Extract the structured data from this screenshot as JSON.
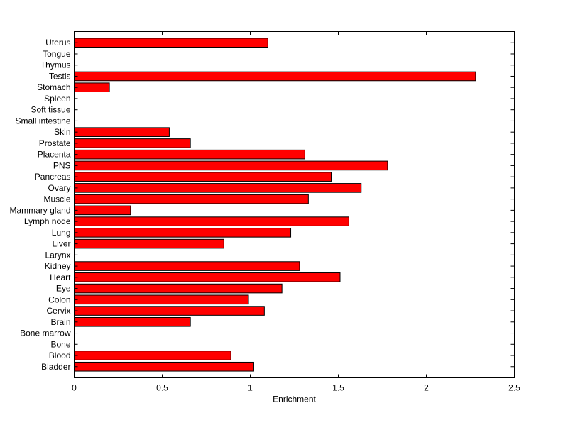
{
  "chart_data": {
    "type": "bar",
    "orientation": "horizontal",
    "title": "",
    "xlabel": "Enrichment",
    "ylabel": "",
    "xlim": [
      0,
      2.5
    ],
    "xticks": [
      "0",
      "0.5",
      "1",
      "1.5",
      "2",
      "2.5"
    ],
    "grid": false,
    "bar_color": "#ff0000",
    "bar_edge_color": "#000000",
    "categories": [
      "Bladder",
      "Blood",
      "Bone",
      "Bone marrow",
      "Brain",
      "Cervix",
      "Colon",
      "Eye",
      "Heart",
      "Kidney",
      "Larynx",
      "Liver",
      "Lung",
      "Lymph node",
      "Mammary gland",
      "Muscle",
      "Ovary",
      "Pancreas",
      "PNS",
      "Placenta",
      "Prostate",
      "Skin",
      "Small intestine",
      "Soft tissue",
      "Spleen",
      "Stomach",
      "Testis",
      "Thymus",
      "Tongue",
      "Uterus"
    ],
    "values": [
      1.02,
      0.89,
      0,
      0,
      0.66,
      1.08,
      0.99,
      1.18,
      1.51,
      1.28,
      0,
      0.85,
      1.23,
      1.56,
      0.32,
      1.33,
      1.63,
      1.46,
      1.78,
      1.31,
      0.66,
      0.54,
      0,
      0,
      0,
      0.2,
      2.28,
      0,
      0,
      1.1
    ]
  }
}
